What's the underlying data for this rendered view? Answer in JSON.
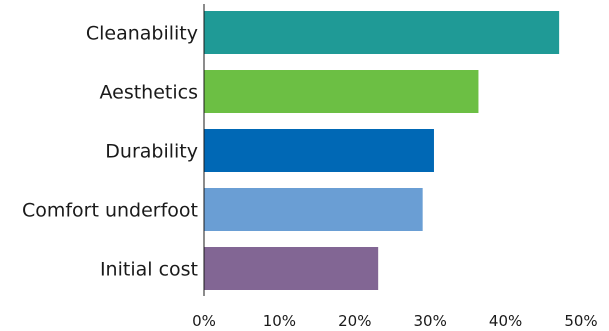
{
  "chart_data": {
    "type": "bar",
    "orientation": "horizontal",
    "categories": [
      "Cleanability",
      "Aesthetics",
      "Durability",
      "Comfort underfoot",
      "Initial cost"
    ],
    "values": [
      47.1,
      36.4,
      30.5,
      29.0,
      23.1
    ],
    "colors": [
      "#1f9a96",
      "#6cbf44",
      "#0068b5",
      "#6a9ed4",
      "#826694"
    ],
    "xlim": [
      0,
      50
    ],
    "xticks": [
      0,
      10,
      20,
      30,
      40,
      50
    ],
    "xtick_labels": [
      "0%",
      "10%",
      "20%",
      "30%",
      "40%",
      "50%"
    ],
    "title": "",
    "xlabel": "",
    "ylabel": "",
    "grid": false,
    "legend": "none"
  }
}
